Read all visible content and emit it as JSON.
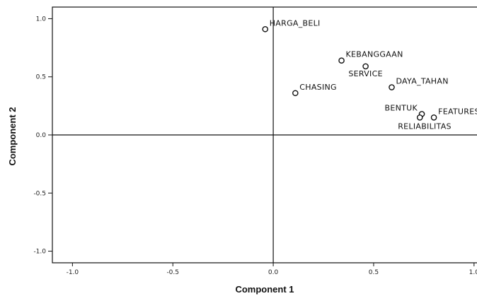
{
  "chart_data": {
    "type": "scatter",
    "title": "",
    "xlabel": "Component 1",
    "ylabel": "Component 2",
    "xlim": [
      -1.1,
      1.05
    ],
    "ylim": [
      -1.1,
      1.1
    ],
    "x_ticks": [
      {
        "value": -1.0,
        "label": "-1.0"
      },
      {
        "value": -0.5,
        "label": "-0.5"
      },
      {
        "value": 0.0,
        "label": "0.0"
      },
      {
        "value": 0.5,
        "label": "0.5"
      },
      {
        "value": 1.0,
        "label": "1.0"
      }
    ],
    "y_ticks": [
      {
        "value": 1.0,
        "label": "1.0"
      },
      {
        "value": 0.5,
        "label": "0.5"
      },
      {
        "value": 0.0,
        "label": "0.0"
      },
      {
        "value": -0.5,
        "label": "-0.5"
      },
      {
        "value": -1.0,
        "label": "-1.0"
      }
    ],
    "grid": false,
    "reference_lines": {
      "x": 0,
      "y": 0
    },
    "points": [
      {
        "label": "HARGA_BELI",
        "x": -0.04,
        "y": 0.91,
        "label_pos": "upper-right"
      },
      {
        "label": "KEBANGGAAN",
        "x": 0.34,
        "y": 0.64,
        "label_pos": "upper-right"
      },
      {
        "label": "SERVICE",
        "x": 0.46,
        "y": 0.59,
        "label_pos": "below-center"
      },
      {
        "label": "DAYA_TAHAN",
        "x": 0.59,
        "y": 0.41,
        "label_pos": "upper-right"
      },
      {
        "label": "CHASING",
        "x": 0.11,
        "y": 0.36,
        "label_pos": "upper-right"
      },
      {
        "label": "BENTUK",
        "x": 0.74,
        "y": 0.18,
        "label_pos": "upper-left"
      },
      {
        "label": "FEATURES",
        "x": 0.8,
        "y": 0.15,
        "label_pos": "upper-right"
      },
      {
        "label": "RELIABILITAS",
        "x": 0.73,
        "y": 0.15,
        "label_pos": "below-right"
      }
    ]
  }
}
